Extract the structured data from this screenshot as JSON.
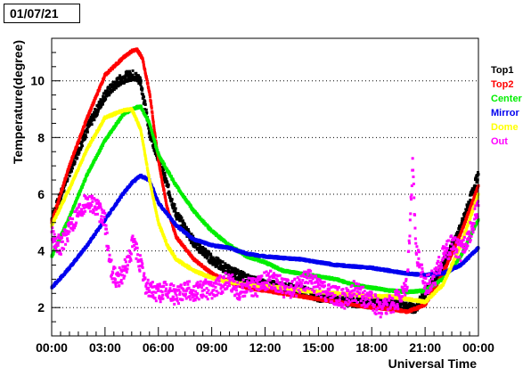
{
  "date_label": "01/07/21",
  "chart_data": {
    "type": "scatter",
    "title": "",
    "xlabel": "Universal Time",
    "ylabel": "Temperature(degree)",
    "xlim": [
      0,
      24
    ],
    "ylim": [
      1,
      11.5
    ],
    "x_unit": "hours UT",
    "x_ticks": [
      0,
      3,
      6,
      9,
      12,
      15,
      18,
      21,
      24
    ],
    "x_tick_labels": [
      "00:00",
      "03:00",
      "06:00",
      "09:00",
      "12:00",
      "15:00",
      "18:00",
      "21:00",
      "00:00"
    ],
    "y_ticks": [
      2,
      4,
      6,
      8,
      10
    ],
    "y_tick_labels": [
      "2",
      "4",
      "6",
      "8",
      "10"
    ],
    "grid": "horizontal dotted",
    "legend_position": "right",
    "series": [
      {
        "name": "Top1",
        "color": "#000000",
        "x": [
          0,
          1,
          2,
          3,
          3.8,
          4.2,
          4.6,
          5.0,
          5.5,
          6.0,
          6.5,
          7.0,
          8.0,
          9.0,
          10.0,
          11.0,
          12.0,
          13.0,
          14.0,
          15.0,
          16.0,
          17.0,
          18.0,
          19.0,
          20.0,
          20.5,
          21.0,
          22.0,
          23.0,
          24.0
        ],
        "y": [
          5.1,
          6.8,
          8.3,
          9.5,
          10.0,
          10.15,
          10.2,
          10.0,
          8.2,
          7.3,
          6.3,
          5.3,
          4.3,
          3.7,
          3.3,
          3.0,
          2.8,
          2.7,
          2.6,
          2.4,
          2.3,
          2.2,
          2.15,
          2.1,
          2.0,
          2.0,
          2.5,
          3.5,
          4.8,
          6.7
        ]
      },
      {
        "name": "Top2",
        "color": "#ff0000",
        "x": [
          0,
          1,
          2,
          3,
          4,
          4.5,
          4.8,
          5.1,
          5.5,
          6.0,
          6.5,
          7.0,
          8.0,
          9.0,
          10.0,
          11.0,
          12.0,
          13.0,
          14.0,
          15.0,
          16.0,
          17.0,
          18.0,
          19.0,
          20.0,
          21.0,
          22.0,
          23.0,
          24.0
        ],
        "y": [
          5.0,
          7.0,
          8.7,
          10.2,
          10.8,
          11.05,
          11.1,
          10.8,
          9.6,
          7.2,
          5.5,
          4.5,
          3.7,
          3.2,
          2.9,
          2.7,
          2.6,
          2.5,
          2.4,
          2.3,
          2.2,
          2.1,
          2.0,
          1.95,
          1.85,
          2.1,
          3.2,
          4.6,
          6.3
        ]
      },
      {
        "name": "Center",
        "color": "#00ee00",
        "x": [
          0,
          1,
          2,
          3,
          4,
          4.5,
          5.0,
          5.5,
          6.0,
          7.0,
          8.0,
          9.0,
          10.0,
          11.0,
          12.0,
          13.0,
          14.0,
          15.0,
          16.0,
          17.0,
          18.0,
          19.0,
          20.0,
          21.0,
          22.0,
          23.0,
          24.0
        ],
        "y": [
          3.8,
          5.2,
          6.7,
          7.9,
          8.8,
          9.0,
          9.1,
          8.5,
          7.4,
          6.3,
          5.4,
          4.7,
          4.2,
          3.8,
          3.6,
          3.3,
          3.2,
          3.1,
          3.0,
          2.8,
          2.7,
          2.6,
          2.55,
          2.6,
          3.0,
          3.8,
          5.1
        ]
      },
      {
        "name": "Mirror",
        "color": "#0000ee",
        "x": [
          0,
          1,
          2,
          3,
          4,
          4.5,
          5.0,
          5.5,
          6.0,
          7.0,
          8.0,
          9.0,
          10.0,
          11.0,
          12.0,
          13.0,
          14.0,
          15.0,
          16.0,
          17.0,
          18.0,
          19.0,
          20.0,
          21.0,
          22.0,
          23.0,
          24.0
        ],
        "y": [
          2.7,
          3.4,
          4.2,
          5.1,
          6.0,
          6.4,
          6.65,
          6.5,
          5.7,
          4.9,
          4.4,
          4.2,
          4.1,
          3.9,
          3.8,
          3.75,
          3.7,
          3.6,
          3.5,
          3.45,
          3.4,
          3.3,
          3.2,
          3.15,
          3.2,
          3.5,
          4.1
        ]
      },
      {
        "name": "Dome",
        "color": "#ffff00",
        "x": [
          0,
          1,
          2,
          3,
          4,
          4.5,
          5.0,
          5.5,
          6.0,
          6.5,
          7.0,
          8.0,
          9.0,
          10.0,
          11.0,
          12.0,
          13.0,
          14.0,
          15.0,
          16.0,
          17.0,
          18.0,
          19.0,
          20.0,
          21.0,
          22.0,
          23.0,
          24.0
        ],
        "y": [
          4.9,
          6.2,
          7.6,
          8.7,
          8.95,
          9.0,
          8.3,
          6.5,
          5.0,
          4.2,
          3.7,
          3.3,
          3.05,
          2.9,
          2.8,
          2.75,
          2.7,
          2.6,
          2.55,
          2.5,
          2.45,
          2.4,
          2.4,
          2.3,
          2.2,
          2.8,
          4.2,
          6.0
        ]
      },
      {
        "name": "Out",
        "color": "#ff00ff",
        "x": [
          0,
          0.5,
          1.0,
          1.5,
          2.0,
          2.5,
          3.0,
          3.3,
          3.6,
          4.0,
          4.3,
          4.6,
          5.0,
          5.3,
          5.6,
          6.0,
          6.5,
          7.0,
          7.5,
          8.0,
          8.5,
          9.0,
          9.5,
          10.0,
          10.5,
          11.0,
          11.5,
          12.0,
          12.5,
          13.0,
          13.5,
          14.0,
          14.5,
          15.0,
          15.5,
          16.0,
          16.5,
          17.0,
          17.5,
          18.0,
          18.5,
          19.0,
          19.5,
          19.8,
          20.0,
          20.3,
          20.5,
          21.0,
          21.5,
          22.0,
          22.5,
          23.0,
          23.5,
          24.0
        ],
        "y": [
          4.5,
          4.2,
          4.8,
          5.4,
          5.8,
          5.6,
          5.0,
          3.5,
          3.0,
          3.2,
          3.6,
          4.3,
          3.5,
          2.8,
          2.6,
          2.5,
          2.6,
          2.4,
          2.7,
          2.5,
          2.7,
          2.6,
          2.8,
          3.0,
          2.6,
          2.8,
          2.7,
          2.9,
          3.0,
          2.7,
          2.6,
          2.9,
          3.0,
          2.7,
          2.5,
          2.4,
          2.3,
          2.6,
          2.4,
          2.2,
          2.0,
          2.1,
          2.3,
          2.6,
          3.0,
          7.0,
          4.0,
          2.8,
          3.0,
          3.8,
          4.2,
          4.0,
          4.6,
          5.6
        ]
      }
    ]
  }
}
